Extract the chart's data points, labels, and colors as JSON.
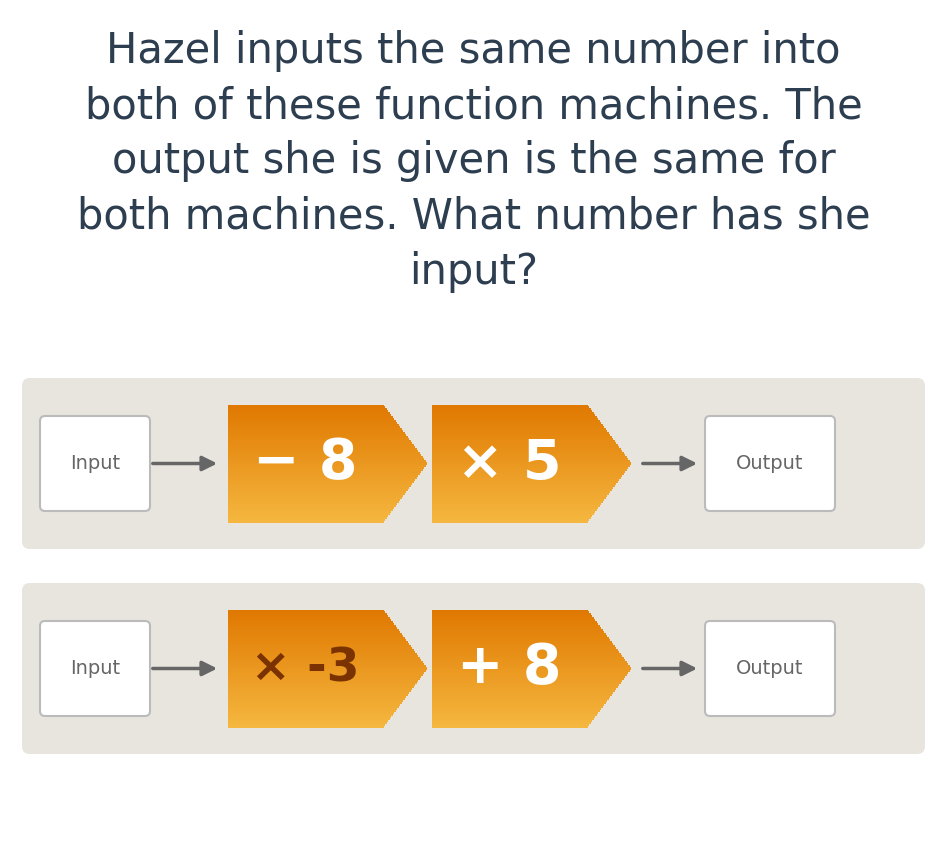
{
  "title": "Hazel inputs the same number into\nboth of these function machines. The\noutput she is given is the same for\nboth machines. What number has she\ninput?",
  "title_color": "#2d3e50",
  "title_fontsize": 30,
  "bg_color": "#ffffff",
  "panel_color": "#e8e5df",
  "box_color": "#ffffff",
  "box_edge_color": "#bbbbbb",
  "arrow_color": "#666666",
  "orange_top": "#e07800",
  "orange_bottom": "#f5b840",
  "machine1": {
    "op1_text": "− 8",
    "op2_text": "× 5",
    "op1_text_color": "#ffffff",
    "op2_text_color": "#ffffff"
  },
  "machine2": {
    "op1_text": "× -3",
    "op2_text": "+ 8",
    "op1_text_color": "#7a3300",
    "op2_text_color": "#ffffff"
  },
  "label_input": "Input",
  "label_output": "Output",
  "label_color": "#666666",
  "label_fontsize": 14,
  "op_fontsize_large": 40,
  "op_fontsize_medium": 34
}
